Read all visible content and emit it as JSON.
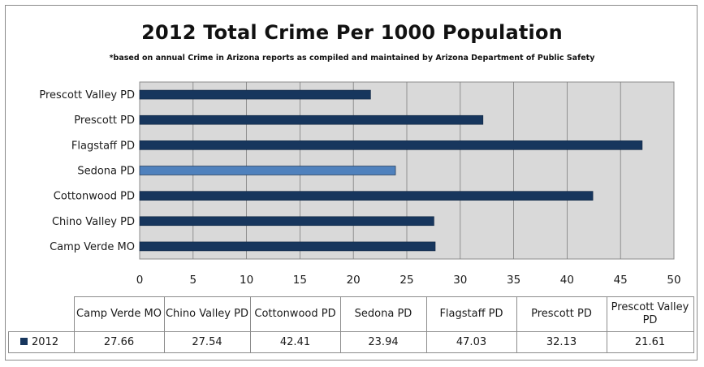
{
  "chart_data": {
    "type": "bar",
    "orientation": "horizontal",
    "title": "2012 Total Crime Per 1000 Population",
    "subtitle": "*based on annual Crime in Arizona reports as compiled and maintained by Arizona Department of Public Safety",
    "categories_top_to_bottom": [
      "Prescott Valley PD",
      "Prescott PD",
      "Flagstaff PD",
      "Sedona PD",
      "Cottonwood PD",
      "Chino Valley PD",
      "Camp Verde MO"
    ],
    "values_top_to_bottom": [
      21.61,
      32.13,
      47.03,
      23.94,
      42.41,
      27.54,
      27.66
    ],
    "highlight_category": "Sedona PD",
    "xlim": [
      0,
      50
    ],
    "x_ticks": [
      0,
      5,
      10,
      15,
      20,
      25,
      30,
      35,
      40,
      45,
      50
    ],
    "grid": "vertical",
    "colors": {
      "bar": "#17365d",
      "highlight": "#4f81bd",
      "plot_bg": "#d9d9d9",
      "gridline": "#7f7f7f"
    },
    "data_table": {
      "series_name": "2012",
      "headers": [
        "Camp Verde MO",
        "Chino Valley PD",
        "Cottonwood PD",
        "Sedona PD",
        "Flagstaff PD",
        "Prescott PD",
        "Prescott Valley PD"
      ],
      "values": [
        "27.66",
        "27.54",
        "42.41",
        "23.94",
        "47.03",
        "32.13",
        "21.61"
      ]
    }
  }
}
